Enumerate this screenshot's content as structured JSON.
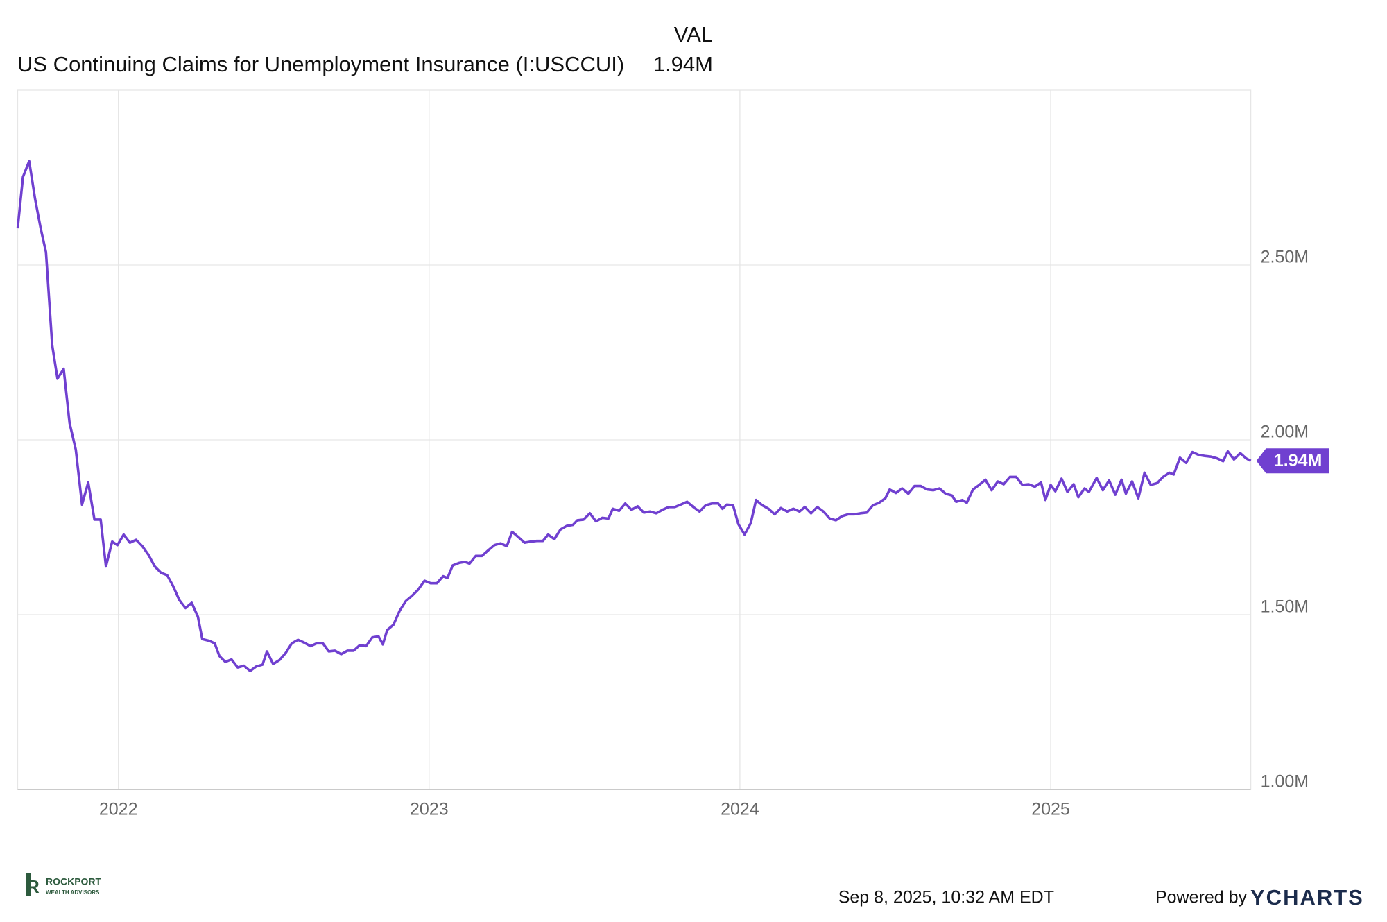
{
  "chart_data": {
    "type": "line",
    "column_header": "VAL",
    "x": [
      2021.676,
      2021.693,
      2021.713,
      2021.732,
      2021.75,
      2021.767,
      2021.787,
      2021.804,
      2021.824,
      2021.843,
      2021.863,
      2021.883,
      2021.903,
      2021.923,
      2021.943,
      2021.96,
      2021.98,
      2021.997,
      2022.017,
      2022.037,
      2022.057,
      2022.077,
      2022.097,
      2022.117,
      2022.137,
      2022.157,
      2022.176,
      2022.196,
      2022.216,
      2022.236,
      2022.256,
      2022.27,
      2022.293,
      2022.31,
      2022.325,
      2022.344,
      2022.364,
      2022.384,
      2022.404,
      2022.424,
      2022.444,
      2022.464,
      2022.478,
      2022.498,
      2022.518,
      2022.538,
      2022.558,
      2022.578,
      2022.598,
      2022.618,
      2022.638,
      2022.658,
      2022.677,
      2022.697,
      2022.717,
      2022.737,
      2022.757,
      2022.777,
      2022.797,
      2022.817,
      2022.837,
      2022.851,
      2022.865,
      2022.885,
      2022.905,
      2022.925,
      2022.945,
      2022.965,
      2022.985,
      2023.005,
      2023.025,
      2023.045,
      2023.059,
      2023.076,
      2023.096,
      2023.116,
      2023.13,
      2023.15,
      2023.17,
      2023.19,
      2023.21,
      2023.23,
      2023.25,
      2023.267,
      2023.287,
      2023.307,
      2023.327,
      2023.346,
      2023.366,
      2023.383,
      2023.403,
      2023.423,
      2023.443,
      2023.463,
      2023.477,
      2023.497,
      2023.517,
      2023.537,
      2023.557,
      2023.577,
      2023.591,
      2023.611,
      2023.631,
      2023.651,
      2023.671,
      2023.691,
      2023.711,
      2023.731,
      2023.751,
      2023.771,
      2023.791,
      2023.81,
      2023.83,
      2023.85,
      2023.87,
      2023.89,
      2023.91,
      2023.93,
      2023.944,
      2023.958,
      2023.978,
      2023.995,
      2024.015,
      2024.035,
      2024.052,
      2024.072,
      2024.092,
      2024.112,
      2024.132,
      2024.152,
      2024.172,
      2024.192,
      2024.209,
      2024.229,
      2024.249,
      2024.269,
      2024.289,
      2024.309,
      2024.329,
      2024.348,
      2024.368,
      2024.388,
      2024.408,
      2024.428,
      2024.448,
      2024.468,
      2024.482,
      2024.502,
      2024.522,
      2024.542,
      2024.562,
      2024.582,
      2024.602,
      2024.622,
      2024.642,
      2024.662,
      2024.682,
      2024.696,
      2024.716,
      2024.73,
      2024.75,
      2024.77,
      2024.79,
      2024.81,
      2024.83,
      2024.849,
      2024.869,
      2024.889,
      2024.909,
      2024.929,
      2024.949,
      2024.969,
      2024.983,
      2025.0,
      2025.015,
      2025.035,
      2025.054,
      2025.074,
      2025.089,
      2025.109,
      2025.123,
      2025.148,
      2025.168,
      2025.188,
      2025.208,
      2025.228,
      2025.242,
      2025.262,
      2025.282,
      2025.302,
      2025.322,
      2025.342,
      2025.362,
      2025.382,
      2025.396,
      2025.416,
      2025.436,
      2025.456,
      2025.476,
      2025.496,
      2025.516,
      2025.536,
      2025.555,
      2025.57,
      2025.59,
      2025.61,
      2025.629,
      2025.644
    ],
    "series": [
      {
        "name": "US Continuing Claims for Unemployment Insurance (I:USCCUI)",
        "color": "#7040d0",
        "last_value_label": "1.94M",
        "values": [
          2.605,
          2.752,
          2.797,
          2.689,
          2.605,
          2.537,
          2.271,
          2.175,
          2.203,
          2.048,
          1.972,
          1.815,
          1.878,
          1.772,
          1.772,
          1.638,
          1.709,
          1.699,
          1.729,
          1.706,
          1.714,
          1.696,
          1.671,
          1.638,
          1.62,
          1.613,
          1.582,
          1.542,
          1.519,
          1.534,
          1.494,
          1.43,
          1.425,
          1.418,
          1.382,
          1.365,
          1.372,
          1.349,
          1.354,
          1.339,
          1.352,
          1.357,
          1.395,
          1.359,
          1.37,
          1.39,
          1.418,
          1.428,
          1.42,
          1.41,
          1.418,
          1.418,
          1.395,
          1.397,
          1.387,
          1.397,
          1.397,
          1.413,
          1.41,
          1.435,
          1.438,
          1.415,
          1.456,
          1.471,
          1.511,
          1.539,
          1.554,
          1.572,
          1.597,
          1.59,
          1.59,
          1.61,
          1.605,
          1.641,
          1.648,
          1.651,
          1.646,
          1.668,
          1.668,
          1.684,
          1.699,
          1.704,
          1.696,
          1.737,
          1.722,
          1.706,
          1.709,
          1.711,
          1.711,
          1.729,
          1.716,
          1.744,
          1.754,
          1.757,
          1.77,
          1.772,
          1.79,
          1.767,
          1.777,
          1.775,
          1.803,
          1.797,
          1.818,
          1.8,
          1.81,
          1.792,
          1.795,
          1.79,
          1.8,
          1.808,
          1.808,
          1.815,
          1.823,
          1.808,
          1.795,
          1.813,
          1.818,
          1.818,
          1.803,
          1.815,
          1.813,
          1.759,
          1.729,
          1.762,
          1.828,
          1.813,
          1.803,
          1.787,
          1.805,
          1.795,
          1.803,
          1.795,
          1.808,
          1.79,
          1.808,
          1.795,
          1.775,
          1.77,
          1.782,
          1.787,
          1.787,
          1.79,
          1.792,
          1.813,
          1.82,
          1.833,
          1.858,
          1.848,
          1.861,
          1.846,
          1.868,
          1.868,
          1.858,
          1.856,
          1.861,
          1.846,
          1.841,
          1.823,
          1.828,
          1.82,
          1.858,
          1.871,
          1.886,
          1.856,
          1.881,
          1.873,
          1.894,
          1.894,
          1.871,
          1.873,
          1.866,
          1.878,
          1.828,
          1.871,
          1.853,
          1.889,
          1.851,
          1.873,
          1.836,
          1.861,
          1.851,
          1.891,
          1.856,
          1.884,
          1.843,
          1.886,
          1.846,
          1.881,
          1.833,
          1.906,
          1.871,
          1.876,
          1.894,
          1.906,
          1.901,
          1.949,
          1.934,
          1.965,
          1.957,
          1.954,
          1.952,
          1.947,
          1.939,
          1.967,
          1.944,
          1.962,
          1.947,
          1.94
        ]
      }
    ],
    "xlim": [
      2021.676,
      2025.644
    ],
    "xticks": [
      2022,
      2023,
      2024,
      2025
    ],
    "ylim": [
      1.0,
      3.0
    ],
    "yticks": [
      {
        "value": 1.0,
        "label": "1.00M"
      },
      {
        "value": 1.5,
        "label": "1.50M"
      },
      {
        "value": 2.0,
        "label": "2.00M"
      },
      {
        "value": 2.5,
        "label": "2.50M"
      }
    ],
    "grid": true
  },
  "footer": {
    "timestamp": "Sep 8, 2025, 10:32 AM EDT",
    "powered_by": "Powered by",
    "brand": "YCHARTS"
  },
  "logo": {
    "letter": "R",
    "name": "ROCKPORT",
    "tagline": "WEALTH ADVISORS"
  }
}
